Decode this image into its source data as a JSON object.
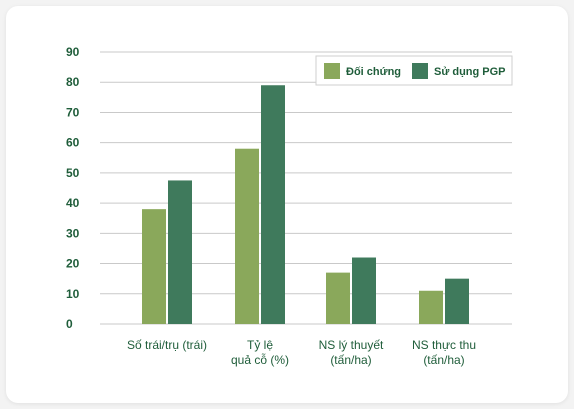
{
  "chart_data": {
    "type": "bar",
    "categories": [
      [
        "Số trái/trụ (trái)"
      ],
      [
        "Tỷ lệ",
        "quả cỗ (%)"
      ],
      [
        "NS lý thuyết",
        "(tấn/ha)"
      ],
      [
        "NS thực thu",
        "(tấn/ha)"
      ]
    ],
    "series": [
      {
        "name": "Đối chứng",
        "values": [
          38,
          58,
          17,
          11
        ],
        "color": "#8aa85b"
      },
      {
        "name": "Sử dụng PGP",
        "values": [
          47.5,
          79,
          22,
          15
        ],
        "color": "#3f7a5c"
      }
    ],
    "ylim": [
      0,
      90
    ],
    "yticks": [
      0,
      10,
      20,
      30,
      40,
      50,
      60,
      70,
      80,
      90
    ],
    "grid": true,
    "legend_position": "top-right",
    "gridline_color": "#c9c9c9",
    "text_color": "#1f5d3a"
  }
}
